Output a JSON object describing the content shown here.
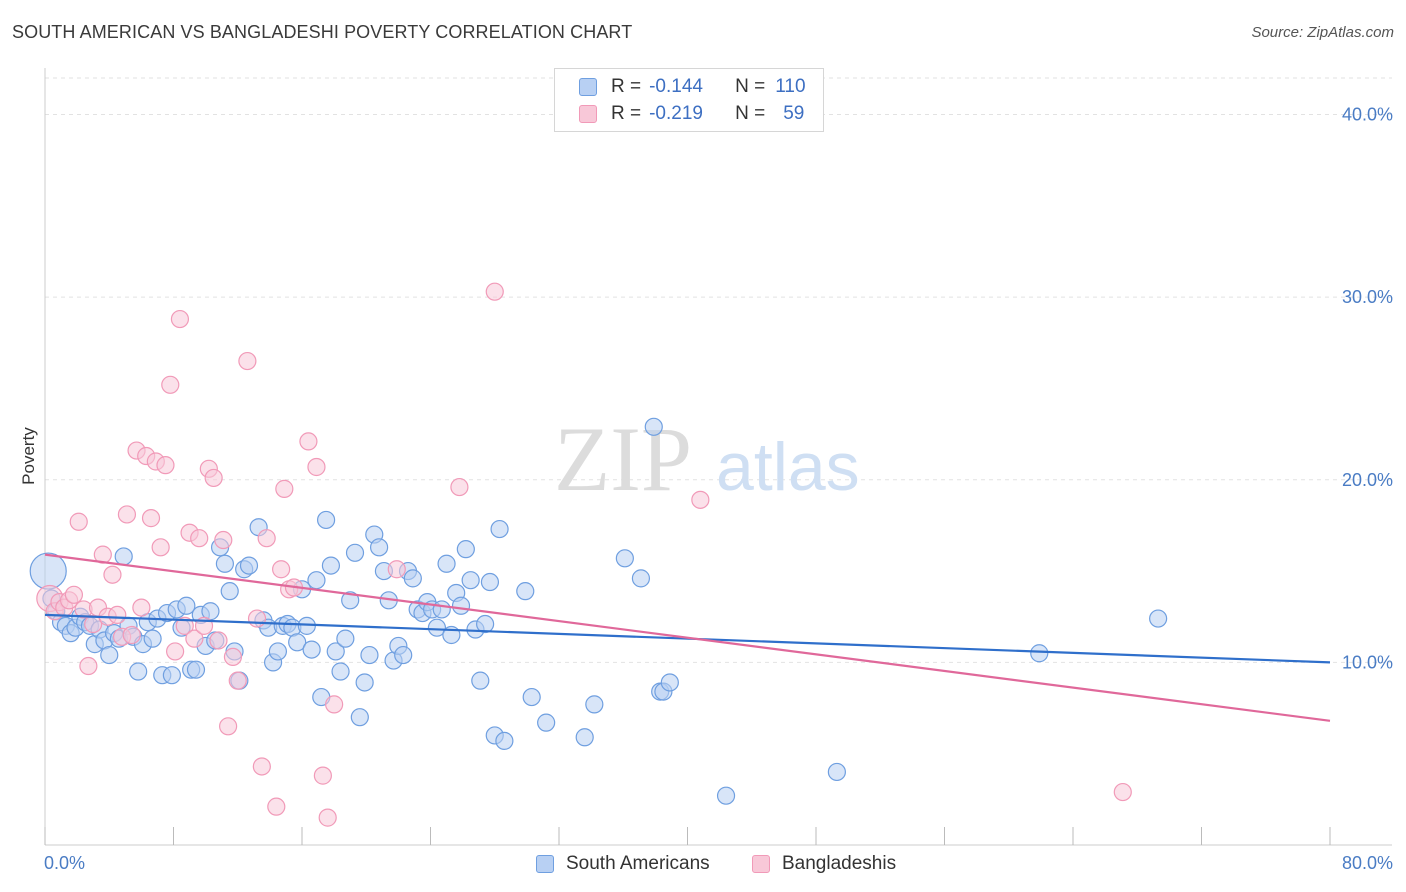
{
  "title": "SOUTH AMERICAN VS BANGLADESHI POVERTY CORRELATION CHART",
  "source": "Source: ZipAtlas.com",
  "watermark": {
    "zip": "ZIP",
    "atlas": "atlas"
  },
  "legend": {
    "r_label": "R =",
    "n_label": "N =",
    "rows": [
      {
        "r": "-0.144",
        "n": "110"
      },
      {
        "r": "-0.219",
        "n": "59"
      }
    ]
  },
  "bottom_legend": [
    "South Americans",
    "Bangladeshis"
  ],
  "chart_data": {
    "type": "scatter",
    "title": "SOUTH AMERICAN VS BANGLADESHI POVERTY CORRELATION CHART",
    "xlabel": "",
    "ylabel": "Poverty",
    "xlim": [
      0,
      80
    ],
    "ylim": [
      0,
      42
    ],
    "x_tick_labels": [
      "0.0%",
      "80.0%"
    ],
    "y_ticks": [
      10,
      20,
      30,
      40
    ],
    "y_tick_labels": [
      "10.0%",
      "20.0%",
      "30.0%",
      "40.0%"
    ],
    "grid": "horizontal dashed",
    "legend_position": "top-center",
    "colors": {
      "south_americans": "#6f9fe0",
      "bangladeshis": "#f19ab8",
      "south_americans_line": "#2f6fcb",
      "bangladeshis_line": "#e0689a"
    },
    "series": [
      {
        "name": "South Americans",
        "trend": [
          [
            0,
            12.6
          ],
          [
            80,
            10.0
          ]
        ],
        "points": [
          [
            0.2,
            15.0
          ],
          [
            0.4,
            13.5
          ],
          [
            0.7,
            12.8
          ],
          [
            1.0,
            12.2
          ],
          [
            1.3,
            12.0
          ],
          [
            1.6,
            11.6
          ],
          [
            1.9,
            11.9
          ],
          [
            2.2,
            12.5
          ],
          [
            2.5,
            12.2
          ],
          [
            2.8,
            12.0
          ],
          [
            3.1,
            11.0
          ],
          [
            3.4,
            11.8
          ],
          [
            3.7,
            11.2
          ],
          [
            4.0,
            10.4
          ],
          [
            4.3,
            11.6
          ],
          [
            4.6,
            11.3
          ],
          [
            4.9,
            15.8
          ],
          [
            5.2,
            12.0
          ],
          [
            5.5,
            11.4
          ],
          [
            5.8,
            9.5
          ],
          [
            6.1,
            11.0
          ],
          [
            6.4,
            12.2
          ],
          [
            6.7,
            11.3
          ],
          [
            7.0,
            12.4
          ],
          [
            7.3,
            9.3
          ],
          [
            7.6,
            12.7
          ],
          [
            7.9,
            9.3
          ],
          [
            8.2,
            12.9
          ],
          [
            8.5,
            11.9
          ],
          [
            8.8,
            13.1
          ],
          [
            9.1,
            9.6
          ],
          [
            9.4,
            9.6
          ],
          [
            9.7,
            12.6
          ],
          [
            10.0,
            10.9
          ],
          [
            10.3,
            12.8
          ],
          [
            10.6,
            11.2
          ],
          [
            10.9,
            16.3
          ],
          [
            11.2,
            15.4
          ],
          [
            11.5,
            13.9
          ],
          [
            11.8,
            10.6
          ],
          [
            12.1,
            9.0
          ],
          [
            12.4,
            15.1
          ],
          [
            12.7,
            15.3
          ],
          [
            13.3,
            17.4
          ],
          [
            13.6,
            12.3
          ],
          [
            13.9,
            11.9
          ],
          [
            14.2,
            10.0
          ],
          [
            14.5,
            10.6
          ],
          [
            14.8,
            12.0
          ],
          [
            15.1,
            12.1
          ],
          [
            15.4,
            11.9
          ],
          [
            15.7,
            11.1
          ],
          [
            16.0,
            14.0
          ],
          [
            16.3,
            12.0
          ],
          [
            16.6,
            10.7
          ],
          [
            16.9,
            14.5
          ],
          [
            17.2,
            8.1
          ],
          [
            17.5,
            17.8
          ],
          [
            17.8,
            15.3
          ],
          [
            18.1,
            10.6
          ],
          [
            18.4,
            9.5
          ],
          [
            18.7,
            11.3
          ],
          [
            19.0,
            13.4
          ],
          [
            19.3,
            16.0
          ],
          [
            19.6,
            7.0
          ],
          [
            19.9,
            8.9
          ],
          [
            20.2,
            10.4
          ],
          [
            20.5,
            17.0
          ],
          [
            20.8,
            16.3
          ],
          [
            21.1,
            15.0
          ],
          [
            21.4,
            13.4
          ],
          [
            21.7,
            10.1
          ],
          [
            22.0,
            10.9
          ],
          [
            22.3,
            10.4
          ],
          [
            22.6,
            15.0
          ],
          [
            22.9,
            14.6
          ],
          [
            23.2,
            12.9
          ],
          [
            23.5,
            12.7
          ],
          [
            23.8,
            13.3
          ],
          [
            24.1,
            12.9
          ],
          [
            24.4,
            11.9
          ],
          [
            24.7,
            12.9
          ],
          [
            25.0,
            15.4
          ],
          [
            25.3,
            11.5
          ],
          [
            25.6,
            13.8
          ],
          [
            25.9,
            13.1
          ],
          [
            26.2,
            16.2
          ],
          [
            26.5,
            14.5
          ],
          [
            26.8,
            11.8
          ],
          [
            27.1,
            9.0
          ],
          [
            27.4,
            12.1
          ],
          [
            27.7,
            14.4
          ],
          [
            28.0,
            6.0
          ],
          [
            28.3,
            17.3
          ],
          [
            28.6,
            5.7
          ],
          [
            29.9,
            13.9
          ],
          [
            30.3,
            8.1
          ],
          [
            31.2,
            6.7
          ],
          [
            33.6,
            5.9
          ],
          [
            34.2,
            7.7
          ],
          [
            36.1,
            15.7
          ],
          [
            37.1,
            14.6
          ],
          [
            37.9,
            22.9
          ],
          [
            38.3,
            8.4
          ],
          [
            38.5,
            8.4
          ],
          [
            38.9,
            8.9
          ],
          [
            42.4,
            2.7
          ],
          [
            49.3,
            4.0
          ],
          [
            61.9,
            10.5
          ],
          [
            69.3,
            12.4
          ]
        ]
      },
      {
        "name": "Bangladeshis",
        "trend": [
          [
            0,
            15.9
          ],
          [
            80,
            6.8
          ]
        ],
        "points": [
          [
            0.3,
            13.5
          ],
          [
            0.6,
            12.8
          ],
          [
            0.9,
            13.3
          ],
          [
            1.2,
            13.0
          ],
          [
            1.5,
            13.4
          ],
          [
            1.8,
            13.7
          ],
          [
            2.1,
            17.7
          ],
          [
            2.4,
            12.9
          ],
          [
            2.7,
            9.8
          ],
          [
            3.0,
            12.1
          ],
          [
            3.3,
            13.0
          ],
          [
            3.6,
            15.9
          ],
          [
            3.9,
            12.5
          ],
          [
            4.2,
            14.8
          ],
          [
            4.5,
            12.6
          ],
          [
            4.8,
            11.4
          ],
          [
            5.1,
            18.1
          ],
          [
            5.4,
            11.5
          ],
          [
            5.7,
            21.6
          ],
          [
            6.0,
            13.0
          ],
          [
            6.3,
            21.3
          ],
          [
            6.6,
            17.9
          ],
          [
            6.9,
            21.0
          ],
          [
            7.2,
            16.3
          ],
          [
            7.5,
            20.8
          ],
          [
            7.8,
            25.2
          ],
          [
            8.1,
            10.6
          ],
          [
            8.4,
            28.8
          ],
          [
            8.7,
            12.0
          ],
          [
            9.0,
            17.1
          ],
          [
            9.3,
            11.3
          ],
          [
            9.6,
            16.8
          ],
          [
            9.9,
            12.0
          ],
          [
            10.2,
            20.6
          ],
          [
            10.5,
            20.1
          ],
          [
            10.8,
            11.2
          ],
          [
            11.1,
            16.7
          ],
          [
            11.4,
            6.5
          ],
          [
            11.7,
            10.3
          ],
          [
            12.0,
            9.0
          ],
          [
            12.6,
            26.5
          ],
          [
            13.2,
            12.4
          ],
          [
            13.5,
            4.3
          ],
          [
            13.8,
            16.8
          ],
          [
            14.4,
            2.1
          ],
          [
            14.7,
            15.1
          ],
          [
            14.9,
            19.5
          ],
          [
            15.2,
            14.0
          ],
          [
            15.5,
            14.1
          ],
          [
            16.4,
            22.1
          ],
          [
            16.9,
            20.7
          ],
          [
            17.3,
            3.8
          ],
          [
            17.6,
            1.5
          ],
          [
            18.0,
            7.7
          ],
          [
            21.9,
            15.1
          ],
          [
            25.8,
            19.6
          ],
          [
            28.0,
            30.3
          ],
          [
            40.8,
            18.9
          ],
          [
            67.1,
            2.9
          ]
        ]
      }
    ]
  }
}
